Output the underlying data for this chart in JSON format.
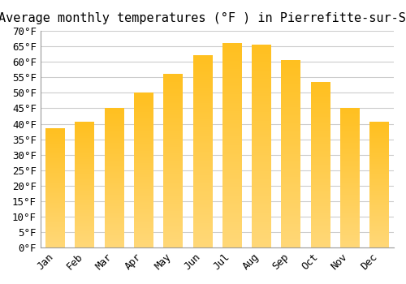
{
  "title": "Average monthly temperatures (°F ) in Pierrefitte-sur-Seine",
  "months": [
    "Jan",
    "Feb",
    "Mar",
    "Apr",
    "May",
    "Jun",
    "Jul",
    "Aug",
    "Sep",
    "Oct",
    "Nov",
    "Dec"
  ],
  "values": [
    38.5,
    40.5,
    45.0,
    50.0,
    56.0,
    62.0,
    66.0,
    65.5,
    60.5,
    53.5,
    45.0,
    40.5
  ],
  "bar_color_top": "#FFC020",
  "bar_color_bottom": "#FFD878",
  "ylim": [
    0,
    70
  ],
  "yticks": [
    0,
    5,
    10,
    15,
    20,
    25,
    30,
    35,
    40,
    45,
    50,
    55,
    60,
    65,
    70
  ],
  "background_color": "#FFFFFF",
  "grid_color": "#CCCCCC",
  "title_fontsize": 11,
  "tick_fontsize": 9,
  "bar_width": 0.65
}
